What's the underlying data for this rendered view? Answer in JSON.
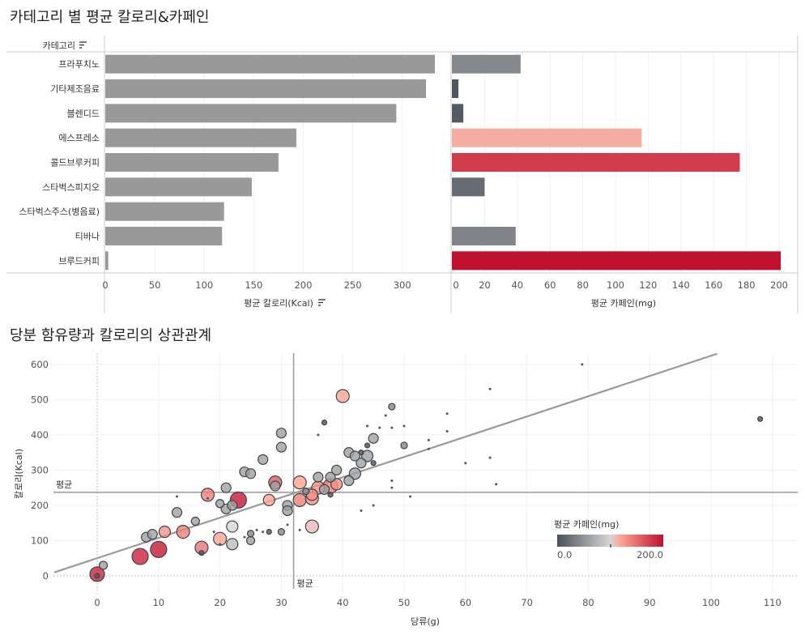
{
  "titles": {
    "top": "카테고리 별 평균 칼로리&카페인",
    "bottom": "당분 함유량과 칼로리의 상관관계"
  },
  "colors": {
    "calorie_bar": "#999999",
    "caffeine_low": "#4a515a",
    "caffeine_mid": "#d6d6d6",
    "caffeine_peach": "#fca392",
    "caffeine_high": "#c0102f",
    "trend_line": "#999999"
  },
  "chart_data": [
    {
      "type": "bar",
      "orientation": "horizontal",
      "header_label": "카테고리",
      "categories": [
        "프라푸치노",
        "기타제조음료",
        "블렌디드",
        "에스프레소",
        "콜드브루커피",
        "스타벅스피지오",
        "스타벅스주스(병음료)",
        "티바나",
        "브루드커피"
      ],
      "values": [
        333,
        324,
        294,
        193,
        175,
        148,
        120,
        118,
        3
      ],
      "xlabel": "평균 칼로리(Kcal)",
      "xlim": [
        0,
        345
      ],
      "xticks": [
        0,
        50,
        100,
        150,
        200,
        250,
        300
      ]
    },
    {
      "type": "bar",
      "orientation": "horizontal",
      "categories": [
        "프라푸치노",
        "기타제조음료",
        "블렌디드",
        "에스프레소",
        "콜드브루커피",
        "스타벅스피지오",
        "스타벅스주스(병음료)",
        "티바나",
        "브루드커피"
      ],
      "values": [
        42,
        4,
        7,
        116,
        176,
        20,
        0,
        39,
        201
      ],
      "xlabel": "평균 카페인(mg)",
      "xlim": [
        0,
        210
      ],
      "xticks": [
        0,
        20,
        40,
        60,
        80,
        100,
        120,
        140,
        160,
        180,
        200
      ]
    },
    {
      "type": "scatter",
      "xlabel": "당류(g)",
      "ylabel": "칼로리(Kcal)",
      "xlim": [
        -7,
        114
      ],
      "ylim": [
        -40,
        630
      ],
      "xticks": [
        0,
        10,
        20,
        30,
        40,
        50,
        60,
        70,
        80,
        90,
        100,
        110
      ],
      "yticks": [
        0,
        100,
        200,
        300,
        400,
        500,
        600
      ],
      "mean_x": 32,
      "mean_y": 237,
      "mean_label": "평균",
      "trend": [
        [
          -7,
          10
        ],
        [
          101,
          630
        ]
      ],
      "legend_title": "평균 카페인(mg)",
      "legend_min": "0.0",
      "legend_max": "200.0",
      "points": [
        {
          "x": 0,
          "y": 5,
          "s": 9,
          "c": 190
        },
        {
          "x": 0,
          "y": 0,
          "s": 3,
          "c": 0
        },
        {
          "x": 1,
          "y": 30,
          "s": 5,
          "c": 60
        },
        {
          "x": 7,
          "y": 55,
          "s": 10,
          "c": 190
        },
        {
          "x": 8,
          "y": 110,
          "s": 6,
          "c": 60
        },
        {
          "x": 9,
          "y": 118,
          "s": 6,
          "c": 60
        },
        {
          "x": 10,
          "y": 75,
          "s": 10,
          "c": 195
        },
        {
          "x": 11,
          "y": 125,
          "s": 7,
          "c": 130
        },
        {
          "x": 13,
          "y": 180,
          "s": 6,
          "c": 60
        },
        {
          "x": 13,
          "y": 225,
          "s": 1,
          "c": 0
        },
        {
          "x": 14,
          "y": 125,
          "s": 8,
          "c": 140
        },
        {
          "x": 16,
          "y": 155,
          "s": 5,
          "c": 60
        },
        {
          "x": 17,
          "y": 80,
          "s": 8,
          "c": 145
        },
        {
          "x": 17,
          "y": 65,
          "s": 3,
          "c": 0
        },
        {
          "x": 18,
          "y": 230,
          "s": 8,
          "c": 140
        },
        {
          "x": 18,
          "y": 220,
          "s": 1,
          "c": 0
        },
        {
          "x": 19,
          "y": 125,
          "s": 1,
          "c": 0
        },
        {
          "x": 20,
          "y": 205,
          "s": 5,
          "c": 60
        },
        {
          "x": 20,
          "y": 105,
          "s": 8,
          "c": 120
        },
        {
          "x": 20,
          "y": 90,
          "s": 1,
          "c": 0
        },
        {
          "x": 21,
          "y": 190,
          "s": 6,
          "c": 60
        },
        {
          "x": 21,
          "y": 250,
          "s": 6,
          "c": 60
        },
        {
          "x": 22,
          "y": 140,
          "s": 7,
          "c": 100
        },
        {
          "x": 22,
          "y": 90,
          "s": 7,
          "c": 80
        },
        {
          "x": 22,
          "y": 200,
          "s": 6,
          "c": 60
        },
        {
          "x": 23,
          "y": 215,
          "s": 10,
          "c": 195
        },
        {
          "x": 24,
          "y": 295,
          "s": 6,
          "c": 60
        },
        {
          "x": 24,
          "y": 110,
          "s": 1,
          "c": 0
        },
        {
          "x": 25,
          "y": 100,
          "s": 5,
          "c": 60
        },
        {
          "x": 25,
          "y": 120,
          "s": 4,
          "c": 40
        },
        {
          "x": 25,
          "y": 290,
          "s": 6,
          "c": 60
        },
        {
          "x": 26,
          "y": 130,
          "s": 1,
          "c": 0
        },
        {
          "x": 27,
          "y": 330,
          "s": 6,
          "c": 60
        },
        {
          "x": 27,
          "y": 125,
          "s": 1,
          "c": 0
        },
        {
          "x": 28,
          "y": 215,
          "s": 7,
          "c": 120
        },
        {
          "x": 28,
          "y": 125,
          "s": 3,
          "c": 0
        },
        {
          "x": 29,
          "y": 265,
          "s": 8,
          "c": 160
        },
        {
          "x": 29,
          "y": 255,
          "s": 6,
          "c": 60
        },
        {
          "x": 30,
          "y": 405,
          "s": 6,
          "c": 60
        },
        {
          "x": 30,
          "y": 365,
          "s": 6,
          "c": 60
        },
        {
          "x": 30,
          "y": 125,
          "s": 4,
          "c": 40
        },
        {
          "x": 31,
          "y": 200,
          "s": 6,
          "c": 60
        },
        {
          "x": 31,
          "y": 185,
          "s": 6,
          "c": 60
        },
        {
          "x": 31,
          "y": 145,
          "s": 1,
          "c": 0
        },
        {
          "x": 33,
          "y": 265,
          "s": 8,
          "c": 120
        },
        {
          "x": 33,
          "y": 215,
          "s": 8,
          "c": 140
        },
        {
          "x": 33,
          "y": 130,
          "s": 1,
          "c": 0
        },
        {
          "x": 34,
          "y": 240,
          "s": 4,
          "c": 40
        },
        {
          "x": 35,
          "y": 140,
          "s": 8,
          "c": 110
        },
        {
          "x": 35,
          "y": 220,
          "s": 8,
          "c": 130
        },
        {
          "x": 35,
          "y": 230,
          "s": 7,
          "c": 130
        },
        {
          "x": 36,
          "y": 250,
          "s": 8,
          "c": 130
        },
        {
          "x": 36,
          "y": 280,
          "s": 6,
          "c": 60
        },
        {
          "x": 36,
          "y": 400,
          "s": 1,
          "c": 0
        },
        {
          "x": 37,
          "y": 435,
          "s": 3,
          "c": 0
        },
        {
          "x": 37,
          "y": 245,
          "s": 6,
          "c": 60
        },
        {
          "x": 38,
          "y": 230,
          "s": 3,
          "c": 0
        },
        {
          "x": 38,
          "y": 255,
          "s": 9,
          "c": 140
        },
        {
          "x": 38,
          "y": 280,
          "s": 6,
          "c": 60
        },
        {
          "x": 39,
          "y": 300,
          "s": 6,
          "c": 60
        },
        {
          "x": 39,
          "y": 260,
          "s": 7,
          "c": 130
        },
        {
          "x": 40,
          "y": 510,
          "s": 8,
          "c": 120
        },
        {
          "x": 41,
          "y": 350,
          "s": 6,
          "c": 60
        },
        {
          "x": 41,
          "y": 270,
          "s": 6,
          "c": 60
        },
        {
          "x": 42,
          "y": 340,
          "s": 6,
          "c": 60
        },
        {
          "x": 42,
          "y": 290,
          "s": 7,
          "c": 60
        },
        {
          "x": 43,
          "y": 320,
          "s": 6,
          "c": 60
        },
        {
          "x": 43,
          "y": 350,
          "s": 3,
          "c": 0
        },
        {
          "x": 43,
          "y": 185,
          "s": 1,
          "c": 0
        },
        {
          "x": 44,
          "y": 340,
          "s": 7,
          "c": 60
        },
        {
          "x": 44,
          "y": 425,
          "s": 1,
          "c": 0
        },
        {
          "x": 44,
          "y": 370,
          "s": 3,
          "c": 0
        },
        {
          "x": 45,
          "y": 390,
          "s": 6,
          "c": 60
        },
        {
          "x": 45,
          "y": 320,
          "s": 3,
          "c": 0
        },
        {
          "x": 45,
          "y": 200,
          "s": 1,
          "c": 0
        },
        {
          "x": 46,
          "y": 420,
          "s": 1,
          "c": 0
        },
        {
          "x": 47,
          "y": 455,
          "s": 1,
          "c": 0
        },
        {
          "x": 48,
          "y": 480,
          "s": 4,
          "c": 40
        },
        {
          "x": 48,
          "y": 270,
          "s": 1,
          "c": 0
        },
        {
          "x": 48,
          "y": 250,
          "s": 1,
          "c": 0
        },
        {
          "x": 48,
          "y": 420,
          "s": 1,
          "c": 0
        },
        {
          "x": 50,
          "y": 370,
          "s": 4,
          "c": 40
        },
        {
          "x": 50,
          "y": 425,
          "s": 1,
          "c": 0
        },
        {
          "x": 51,
          "y": 225,
          "s": 1,
          "c": 0
        },
        {
          "x": 54,
          "y": 385,
          "s": 1,
          "c": 0
        },
        {
          "x": 54,
          "y": 360,
          "s": 1,
          "c": 0
        },
        {
          "x": 57,
          "y": 460,
          "s": 1,
          "c": 0
        },
        {
          "x": 57,
          "y": 410,
          "s": 1,
          "c": 0
        },
        {
          "x": 60,
          "y": 320,
          "s": 1,
          "c": 0
        },
        {
          "x": 64,
          "y": 335,
          "s": 1,
          "c": 0
        },
        {
          "x": 64,
          "y": 530,
          "s": 1,
          "c": 0
        },
        {
          "x": 65,
          "y": 260,
          "s": 1,
          "c": 0
        },
        {
          "x": 79,
          "y": 600,
          "s": 1,
          "c": 0
        },
        {
          "x": 108,
          "y": 445,
          "s": 3,
          "c": 0
        }
      ]
    }
  ]
}
